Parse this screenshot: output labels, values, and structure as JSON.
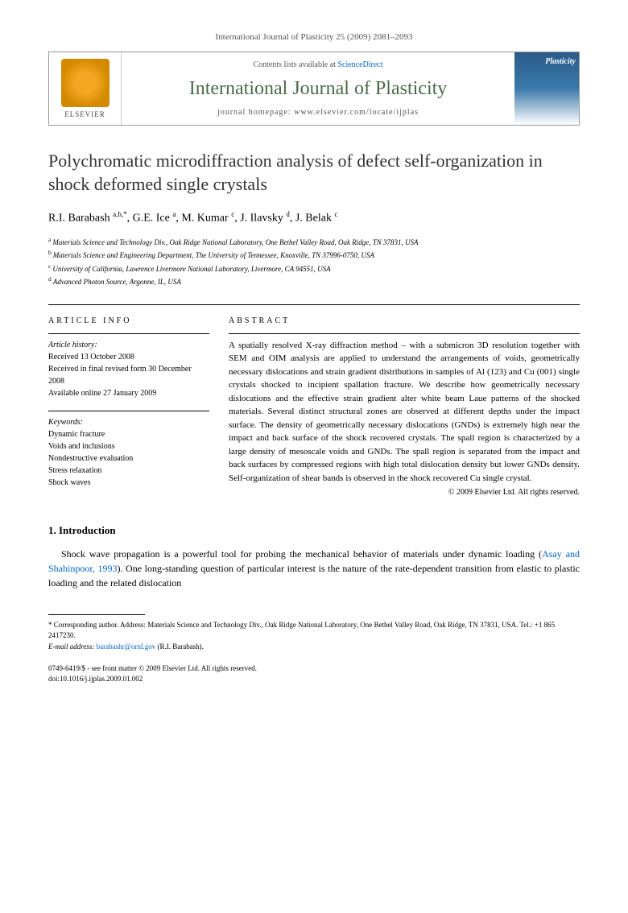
{
  "header": {
    "citation": "International Journal of Plasticity 25 (2009) 2081–2093"
  },
  "banner": {
    "publisher": "ELSEVIER",
    "contents_prefix": "Contents lists available at ",
    "contents_link": "ScienceDirect",
    "journal_name": "International Journal of Plasticity",
    "homepage": "journal homepage: www.elsevier.com/locate/ijplas",
    "cover_label": "Plasticity"
  },
  "title": "Polychromatic microdiffraction analysis of defect self-organization in shock deformed single crystals",
  "authors_html": "R.I. Barabash <sup>a,b,*</sup>, G.E. Ice <sup>a</sup>, M. Kumar <sup>c</sup>, J. Ilavsky <sup>d</sup>, J. Belak <sup>c</sup>",
  "affiliations": [
    {
      "sup": "a",
      "text": "Materials Science and Technology Div., Oak Ridge National Laboratory, One Bethel Valley Road, Oak Ridge, TN 37831, USA"
    },
    {
      "sup": "b",
      "text": "Materials Science and Engineering Department, The University of Tennessee, Knoxville, TN 37996-0750, USA"
    },
    {
      "sup": "c",
      "text": "University of California, Lawrence Livermore National Laboratory, Livermore, CA 94551, USA"
    },
    {
      "sup": "d",
      "text": "Advanced Photon Source, Argonne, IL, USA"
    }
  ],
  "article_info": {
    "heading": "ARTICLE INFO",
    "history_label": "Article history:",
    "received": "Received 13 October 2008",
    "revised": "Received in final revised form 30 December 2008",
    "online": "Available online 27 January 2009",
    "keywords_label": "Keywords:",
    "keywords": [
      "Dynamic fracture",
      "Voids and inclusions",
      "Nondestructive evaluation",
      "Stress relaxation",
      "Shock waves"
    ]
  },
  "abstract": {
    "heading": "ABSTRACT",
    "text": "A spatially resolved X-ray diffraction method – with a submicron 3D resolution together with SEM and OIM analysis are applied to understand the arrangements of voids, geometrically necessary dislocations and strain gradient distributions in samples of Al (123) and Cu (001) single crystals shocked to incipient spallation fracture. We describe how geometrically necessary dislocations and the effective strain gradient alter white beam Laue patterns of the shocked materials. Several distinct structural zones are observed at different depths under the impact surface. The density of geometrically necessary dislocations (GNDs) is extremely high near the impact and back surface of the shock recovered crystals. The spall region is characterized by a large density of mesoscale voids and GNDs. The spall region is separated from the impact and back surfaces by compressed regions with high total dislocation density but lower GNDs density. Self-organization of shear bands is observed in the shock recovered Cu single crystal.",
    "copyright": "© 2009 Elsevier Ltd. All rights reserved."
  },
  "intro": {
    "heading": "1. Introduction",
    "text_before_cite": "Shock wave propagation is a powerful tool for probing the mechanical behavior of materials under dynamic loading (",
    "cite": "Asay and Shahinpoor, 1993",
    "text_after_cite": "). One long-standing question of particular interest is the nature of the rate-dependent transition from elastic to plastic loading and the related dislocation"
  },
  "footnotes": {
    "corresponding": "* Corresponding author. Address: Materials Science and Technology Div., Oak Ridge National Laboratory, One Bethel Valley Road, Oak Ridge, TN 37831, USA. Tel.: +1 865 2417230.",
    "email_label": "E-mail address: ",
    "email": "barabashr@ornl.gov",
    "email_suffix": " (R.I. Barabash)."
  },
  "bottom": {
    "issn": "0749-6419/$ - see front matter © 2009 Elsevier Ltd. All rights reserved.",
    "doi": "doi:10.1016/j.ijplas.2009.01.002"
  },
  "colors": {
    "link": "#0066cc",
    "journal_title": "#4a6a4a",
    "text": "#000000",
    "muted": "#555555",
    "border": "#999999"
  },
  "fonts": {
    "body_family": "Georgia, Times New Roman, serif",
    "title_size_pt": 22,
    "journal_name_size_pt": 24,
    "body_size_pt": 13,
    "abstract_size_pt": 11,
    "affiliation_size_pt": 9,
    "footnote_size_pt": 9
  }
}
